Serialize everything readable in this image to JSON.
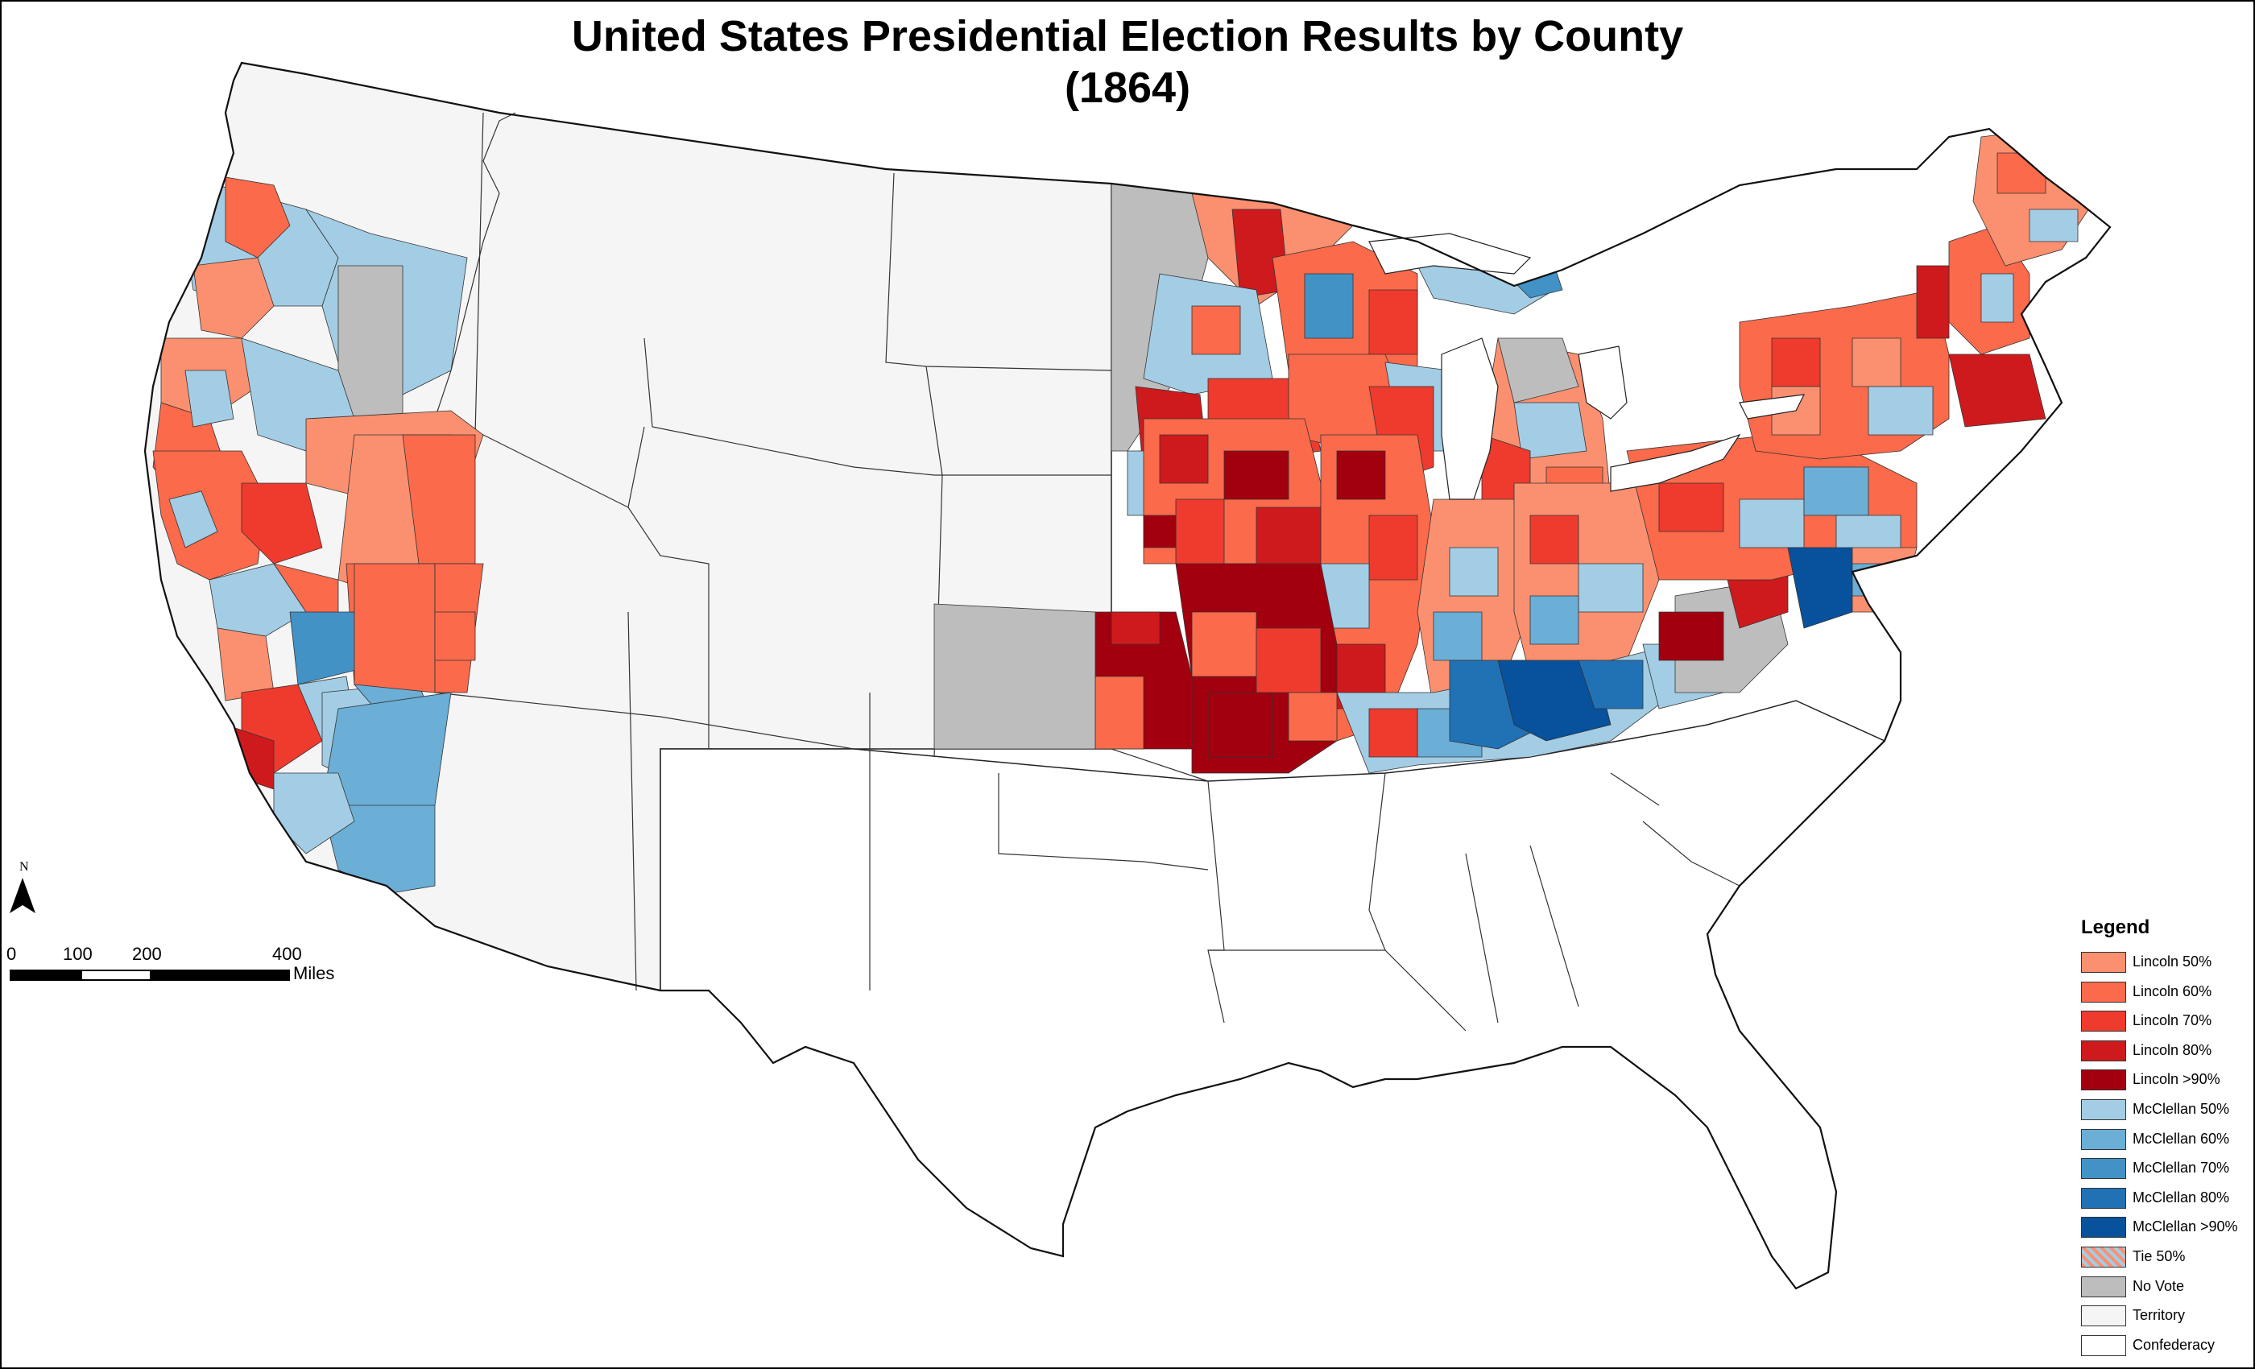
{
  "title": {
    "line1": "United States Presidential Election Results by County",
    "line2": "(1864)"
  },
  "north_arrow": {
    "label": "N",
    "icon": "north-arrow-icon"
  },
  "scale_bar": {
    "ticks": [
      "0",
      "100",
      "200",
      "400"
    ],
    "units": "Miles"
  },
  "legend": {
    "heading": "Legend",
    "items": [
      {
        "label": "Lincoln 50%",
        "color": "#fb9070"
      },
      {
        "label": "Lincoln 60%",
        "color": "#fa6a4b"
      },
      {
        "label": "Lincoln 70%",
        "color": "#ee3b2e"
      },
      {
        "label": "Lincoln 80%",
        "color": "#ce1a1d"
      },
      {
        "label": "Lincoln >90%",
        "color": "#a3000f"
      },
      {
        "label": "McClellan 50%",
        "color": "#a3cde4"
      },
      {
        "label": "McClellan 60%",
        "color": "#6baed6"
      },
      {
        "label": "McClellan 70%",
        "color": "#4292c6"
      },
      {
        "label": "McClellan 80%",
        "color": "#2171b5"
      },
      {
        "label": "McClellan >90%",
        "color": "#08519c"
      },
      {
        "label": "Tie 50%",
        "color": "hatch"
      },
      {
        "label": "No Vote",
        "color": "#bdbdbd"
      },
      {
        "label": "Territory",
        "color": "#f5f5f5"
      },
      {
        "label": "Confederacy",
        "color": "#ffffff"
      }
    ]
  }
}
